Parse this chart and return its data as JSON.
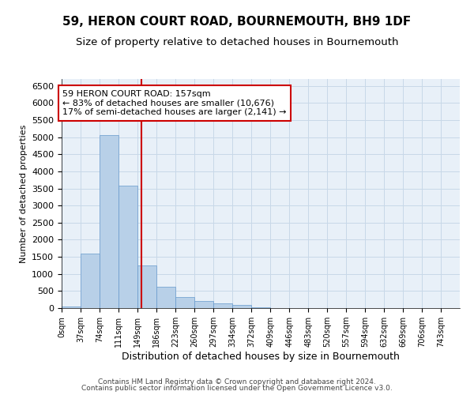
{
  "title": "59, HERON COURT ROAD, BOURNEMOUTH, BH9 1DF",
  "subtitle": "Size of property relative to detached houses in Bournemouth",
  "xlabel": "Distribution of detached houses by size in Bournemouth",
  "ylabel": "Number of detached properties",
  "bar_left_edges": [
    0,
    37,
    74,
    111,
    149,
    186,
    223,
    260,
    297,
    334,
    372,
    409,
    446,
    483,
    520,
    557,
    594,
    632,
    669,
    706
  ],
  "bar_labels": [
    "0sqm",
    "37sqm",
    "74sqm",
    "111sqm",
    "149sqm",
    "186sqm",
    "223sqm",
    "260sqm",
    "297sqm",
    "334sqm",
    "372sqm",
    "409sqm",
    "446sqm",
    "483sqm",
    "520sqm",
    "557sqm",
    "594sqm",
    "632sqm",
    "669sqm",
    "706sqm",
    "743sqm"
  ],
  "bar_heights": [
    55,
    1600,
    5050,
    3580,
    1250,
    620,
    320,
    200,
    150,
    90,
    25,
    0,
    0,
    0,
    0,
    0,
    0,
    0,
    0,
    0
  ],
  "bar_color": "#b8d0e8",
  "bar_edge_color": "#6699cc",
  "property_line_x": 157,
  "property_line_color": "#cc0000",
  "annotation_text": "59 HERON COURT ROAD: 157sqm\n← 83% of detached houses are smaller (10,676)\n17% of semi-detached houses are larger (2,141) →",
  "annotation_box_color": "#cc0000",
  "ylim": [
    0,
    6700
  ],
  "yticks": [
    0,
    500,
    1000,
    1500,
    2000,
    2500,
    3000,
    3500,
    4000,
    4500,
    5000,
    5500,
    6000,
    6500
  ],
  "grid_color": "#c8d8e8",
  "background_color": "#e8f0f8",
  "footer_line1": "Contains HM Land Registry data © Crown copyright and database right 2024.",
  "footer_line2": "Contains public sector information licensed under the Open Government Licence v3.0.",
  "title_fontsize": 11,
  "subtitle_fontsize": 9.5,
  "annotation_fontsize": 8,
  "ylabel_fontsize": 8,
  "xlabel_fontsize": 9
}
